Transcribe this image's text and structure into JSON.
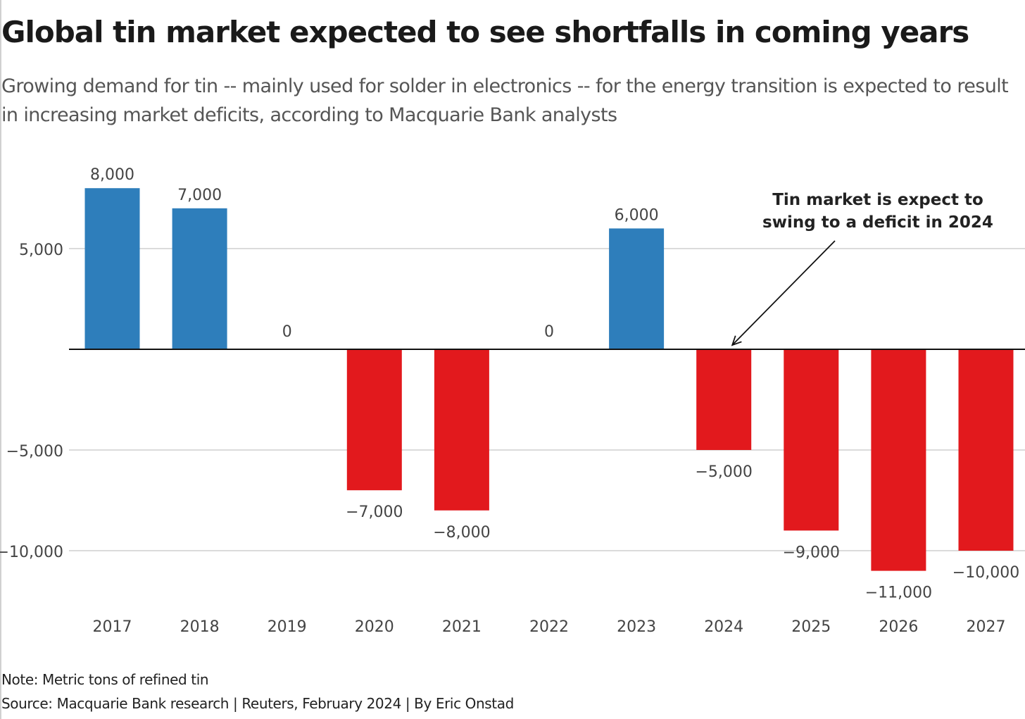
{
  "header": {
    "title": "Global tin market expected to see shortfalls in coming years",
    "subtitle": "Growing demand for tin -- mainly used for solder in electronics -- for the energy transition is expected to result in increasing market deficits, according to Macquarie Bank analysts"
  },
  "footer": {
    "note": "Note: Metric tons of refined tin",
    "source": "Source: Macquarie Bank research | Reuters, February 2024 | By Eric Onstad"
  },
  "chart_data": {
    "type": "bar",
    "title": "Global tin market expected to see shortfalls in coming years",
    "subtitle": "Growing demand for tin -- mainly used for solder in electronics -- for the energy transition is expected to result in increasing market deficits, according to Macquarie Bank analysts",
    "categories": [
      "2017",
      "2018",
      "2019",
      "2020",
      "2021",
      "2022",
      "2023",
      "2024",
      "2025",
      "2026",
      "2027"
    ],
    "values": [
      8000,
      7000,
      0,
      -7000,
      -8000,
      0,
      6000,
      -5000,
      -9000,
      -11000,
      -10000
    ],
    "data_labels": [
      "8,000",
      "7,000",
      "0",
      "−7,000",
      "−8,000",
      "0",
      "6,000",
      "−5,000",
      "−9,000",
      "−11,000",
      "−10,000"
    ],
    "y_ticks": [
      5000,
      -5000,
      -10000
    ],
    "y_tick_labels": [
      "5,000",
      "−5,000",
      "−10,000"
    ],
    "ylim": [
      -12800,
      8000
    ],
    "grid": true,
    "legend": "none",
    "xlabel": "",
    "ylabel": "",
    "colors": {
      "positive": "#2e7ebb",
      "negative": "#e2191d",
      "zero_line": "#111111",
      "grid": "#cfcfcf"
    },
    "annotations": [
      {
        "lines": [
          "Tin market is expect to",
          "swing to a deficit in 2024"
        ],
        "category": "2024",
        "value": 0
      }
    ]
  }
}
